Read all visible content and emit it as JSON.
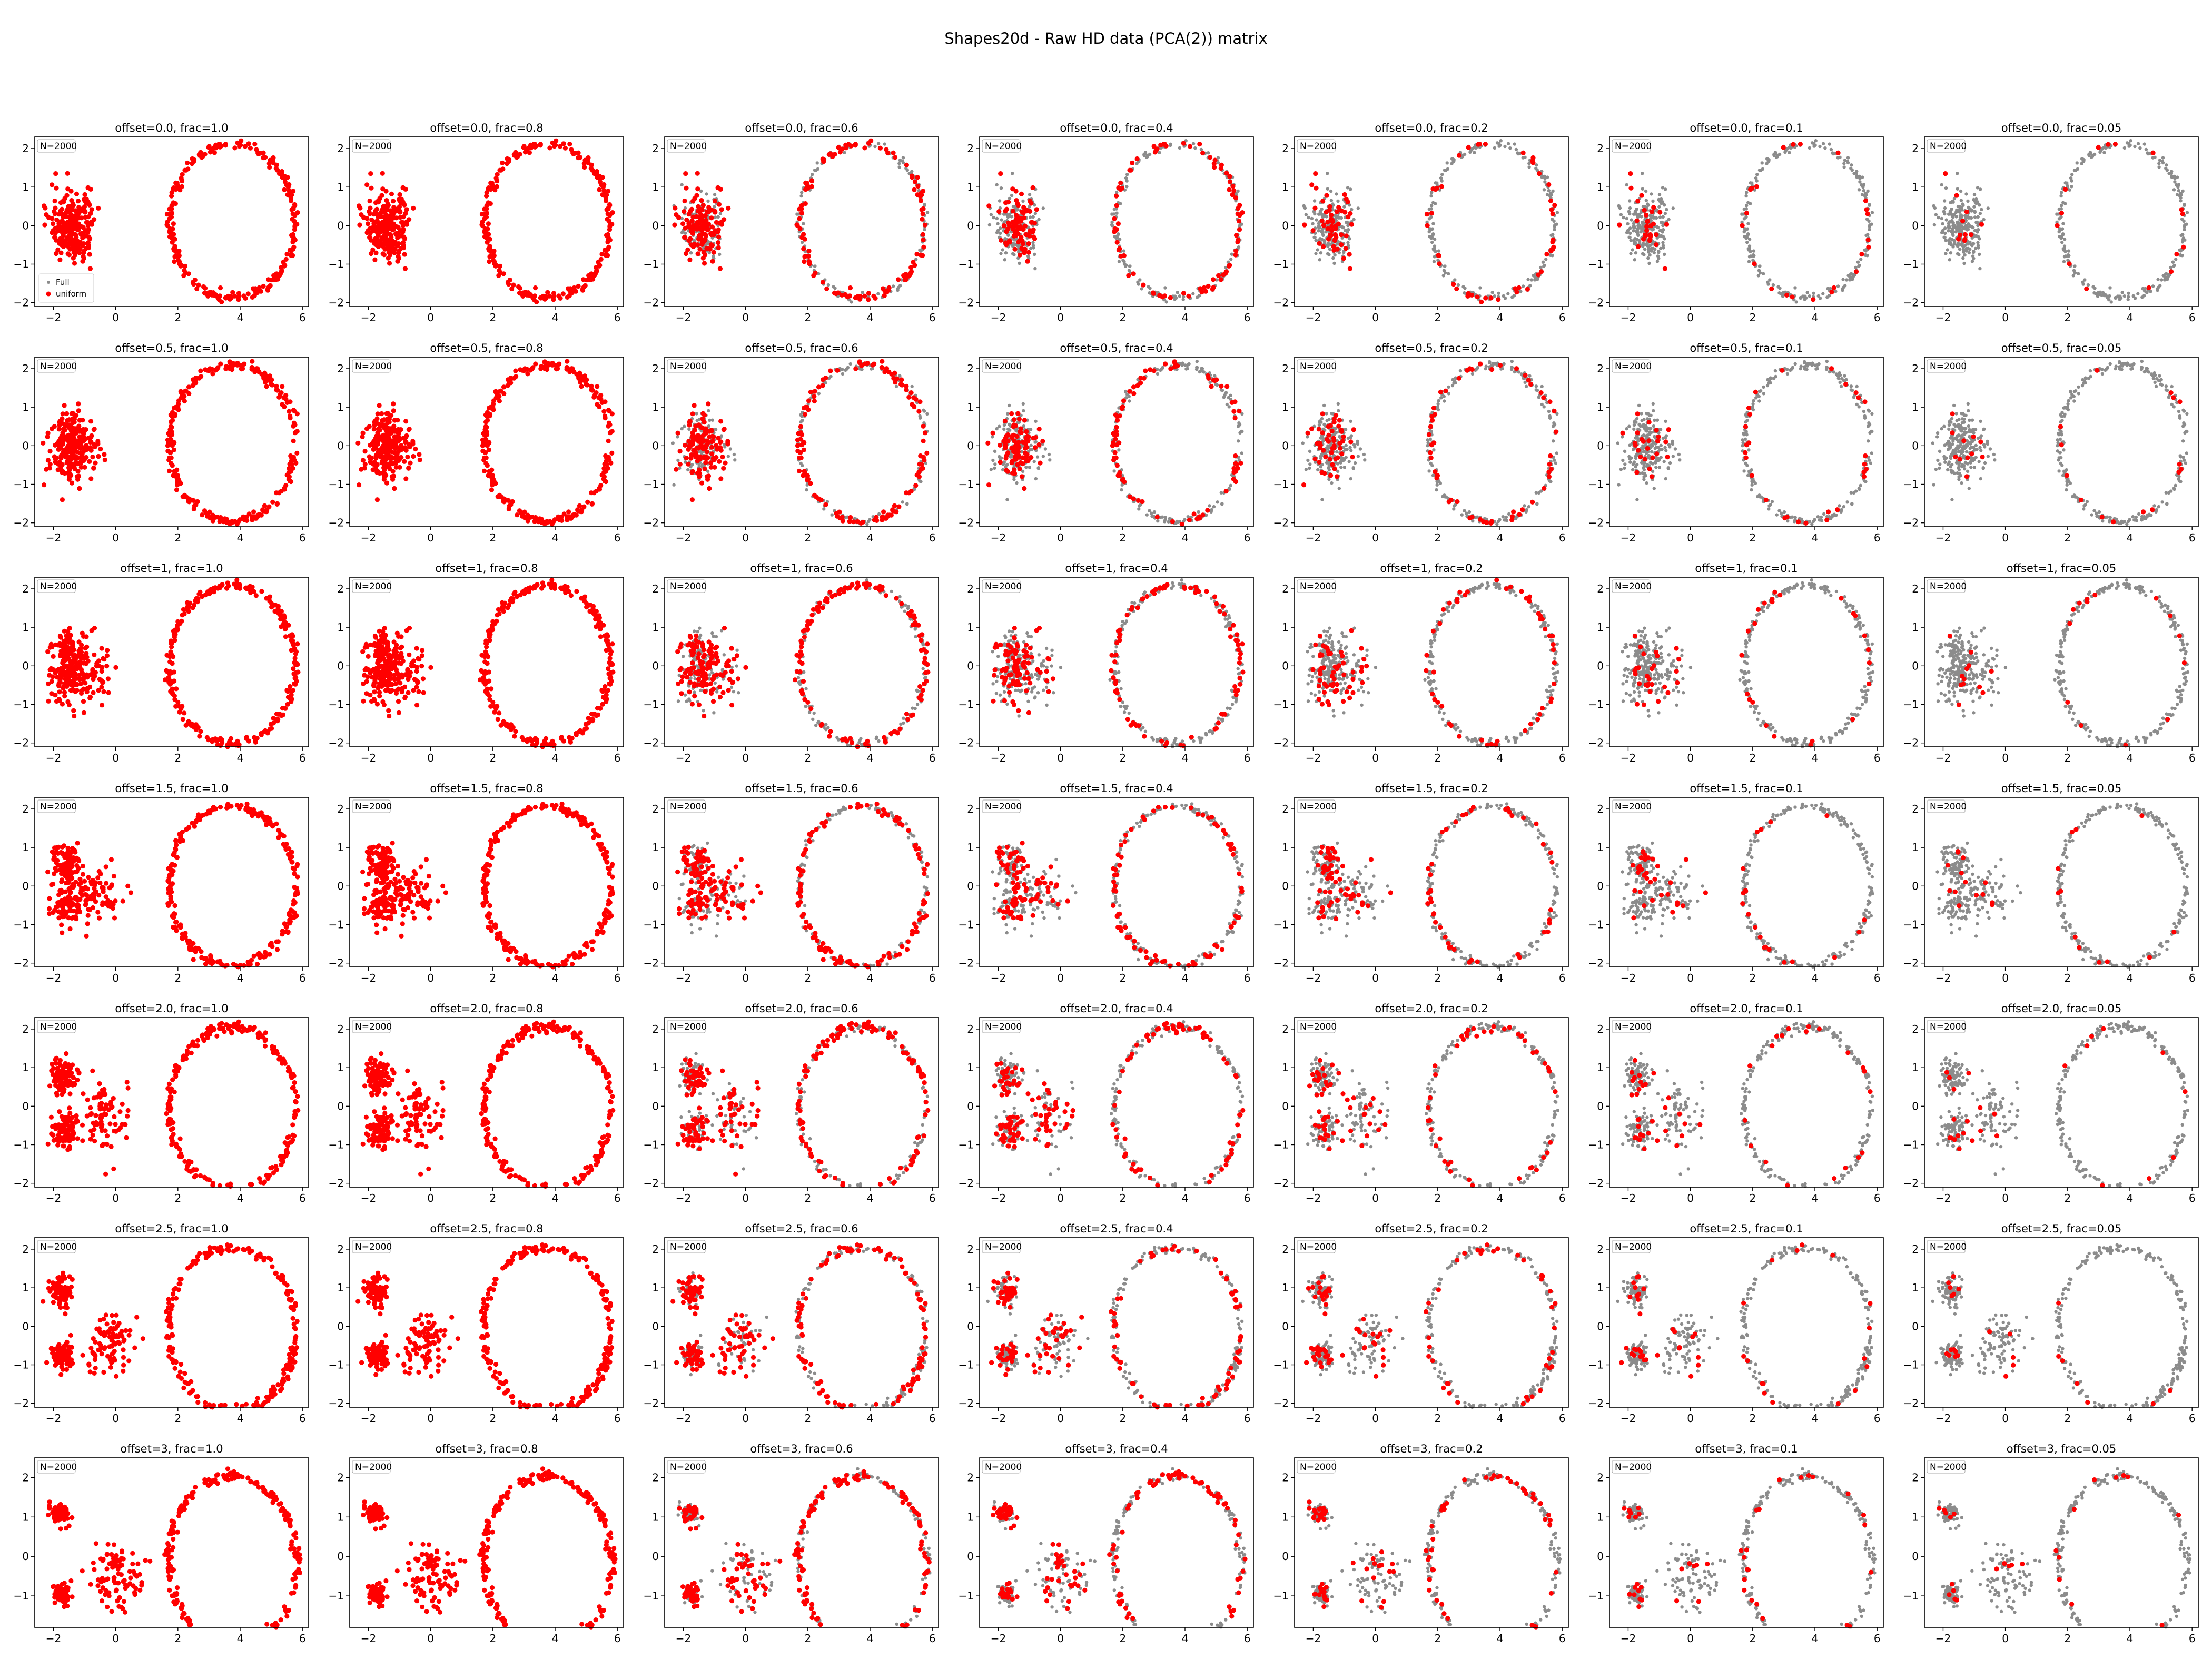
{
  "figure": {
    "title": "Shapes20d - Raw HD data (PCA(2)) matrix"
  },
  "colors": {
    "full": "#8c8c8c",
    "subsample": "#ff0000",
    "axes": "#000000",
    "background": "#ffffff"
  },
  "chart_data": {
    "type": "scatter",
    "layout": "grid",
    "rows": [
      "offset=0.0",
      "offset=0.5",
      "offset=1",
      "offset=1.5",
      "offset=2.0",
      "offset=2.5",
      "offset=3"
    ],
    "row_offsets": [
      0.0,
      0.5,
      1.0,
      1.5,
      2.0,
      2.5,
      3.0
    ],
    "row_offset_labels": [
      "0.0",
      "0.5",
      "1",
      "1.5",
      "2.0",
      "2.5",
      "3"
    ],
    "cols": [
      "frac=1.0",
      "frac=0.8",
      "frac=0.6",
      "frac=0.4",
      "frac=0.2",
      "frac=0.1",
      "frac=0.05"
    ],
    "col_fracs": [
      1.0,
      0.8,
      0.6,
      0.4,
      0.2,
      0.1,
      0.05
    ],
    "col_frac_labels": [
      "1.0",
      "0.8",
      "0.6",
      "0.4",
      "0.2",
      "0.1",
      "0.05"
    ],
    "panel_title_template": "offset={offset}, frac={frac}",
    "n_label": "N=2000",
    "n_points": 2000,
    "series": [
      {
        "name": "Full",
        "color": "#8c8c8c",
        "marker": "small dot"
      },
      {
        "name": "uniform",
        "color": "#ff0000",
        "marker": "dot"
      }
    ],
    "legend": {
      "placement": "lower-left",
      "panel": "offset=0.0, frac=1.0",
      "entries": [
        "Full",
        "uniform"
      ]
    },
    "shapes": {
      "ring": {
        "center": [
          3.75,
          0.1
        ],
        "rx": 2.0,
        "ry": 2.0,
        "note": "ellipse ring present in every panel"
      },
      "blob_offset_0": {
        "center": [
          -1.4,
          0.0
        ],
        "spread": [
          0.35,
          0.45
        ]
      },
      "offset_rule": "as offset grows the blob splits into an upper-left cluster near (-1.8, 1.1), a lower cluster near (-1.7, -0.8) and a central cluster near (0.0, -0.5)"
    },
    "xticks": [
      -2,
      0,
      2,
      4,
      6
    ],
    "yticks_rows_0_to_5": [
      -2,
      -1,
      0,
      1,
      2
    ],
    "yticks_row_6": [
      -1,
      0,
      1,
      2
    ],
    "xlim": [
      -2.6,
      6.2
    ],
    "ylim_rows_0_to_5": [
      -2.1,
      2.3
    ],
    "ylim_row_6": [
      -1.8,
      2.5
    ]
  }
}
